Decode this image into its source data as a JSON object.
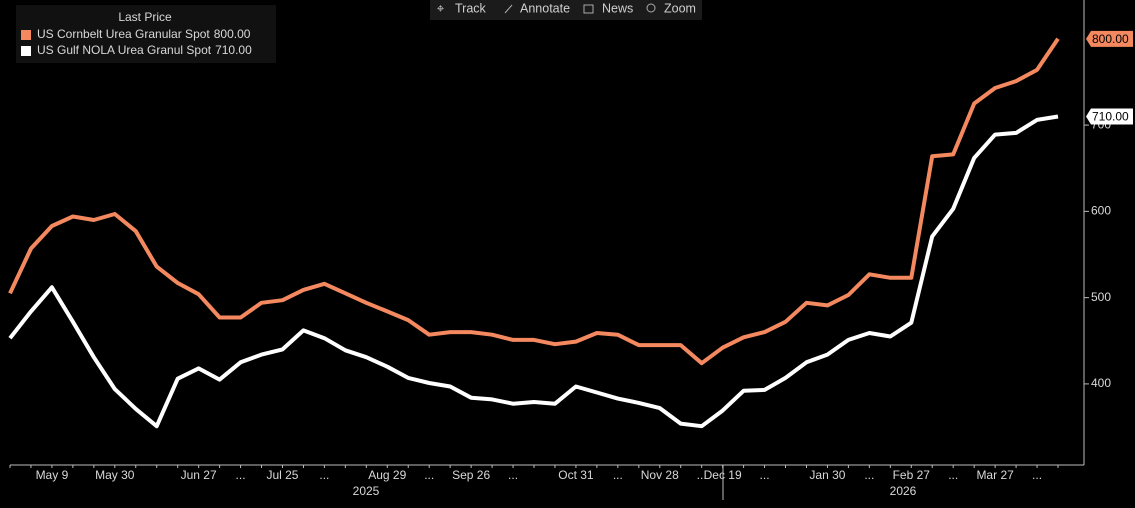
{
  "toolbar": [
    "Track",
    "Annotate",
    "News",
    "Zoom"
  ],
  "chart_data": {
    "type": "line",
    "legend_title": "Last Price",
    "categories": [
      null,
      null,
      "May 9",
      null,
      null,
      "May 30",
      null,
      null,
      null,
      "Jun 27",
      null,
      "...",
      null,
      "Jul 25",
      null,
      "...",
      null,
      null,
      "Aug 29",
      null,
      "...",
      null,
      "Sep 26",
      null,
      "...",
      null,
      null,
      "Oct 31",
      null,
      "...",
      null,
      "Nov 28",
      null,
      "...",
      "Dec 19",
      null,
      "...",
      null,
      null,
      "Jan 30",
      null,
      "...",
      null,
      "Feb 27",
      null,
      "...",
      null,
      "Mar 27",
      null,
      "...",
      null
    ],
    "years": [
      "2025",
      "2026"
    ],
    "series": [
      {
        "name": "US Cornbelt Urea Granular Spot",
        "color": "#f4895f",
        "last": {
          "value": 800,
          "label": "800.00"
        },
        "values": [
          505,
          557,
          583,
          594,
          590,
          597,
          577,
          536,
          517,
          504,
          477,
          477,
          494,
          497,
          509,
          516,
          505,
          494,
          484,
          474,
          457,
          460,
          460,
          457,
          451,
          451,
          446,
          449,
          459,
          457,
          445,
          445,
          445,
          424,
          442,
          454,
          460,
          472,
          494,
          491,
          503,
          527,
          523,
          523,
          664,
          666,
          725,
          743,
          751,
          764,
          800
        ]
      },
      {
        "name": "US Gulf NOLA Urea Granul Spot",
        "color": "#ffffff",
        "last": {
          "value": 710,
          "label": "710.00"
        },
        "values": [
          453,
          484,
          512,
          472,
          431,
          394,
          371,
          351,
          406,
          418,
          405,
          425,
          434,
          440,
          462,
          453,
          439,
          431,
          420,
          407,
          401,
          397,
          384,
          382,
          377,
          379,
          377,
          397,
          390,
          383,
          378,
          372,
          354,
          351,
          369,
          392,
          393,
          407,
          425,
          434,
          451,
          459,
          455,
          471,
          571,
          603,
          662,
          689,
          691,
          706,
          710
        ]
      }
    ],
    "ylim": [
      306,
      845
    ],
    "yticks": [
      400,
      500,
      600,
      700
    ],
    "y_axis_side": "right",
    "grid": false
  }
}
